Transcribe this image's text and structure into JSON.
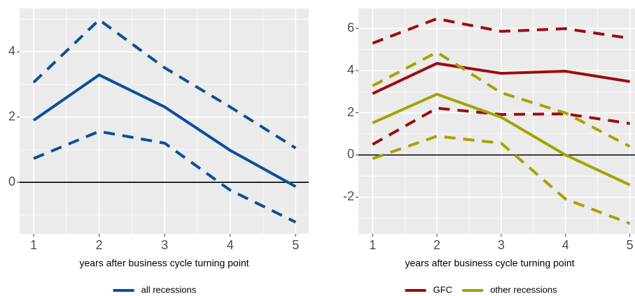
{
  "chart_data": [
    {
      "type": "line",
      "x": [
        1,
        2,
        3,
        4,
        5
      ],
      "xlim": [
        0.786,
        5.2
      ],
      "xticks": [
        1,
        2,
        3,
        4,
        5
      ],
      "ylim": [
        -1.58,
        5.33
      ],
      "yticks": [
        0,
        2,
        4
      ],
      "hline": 0,
      "grid": true,
      "x_label": "years after business cycle turning point",
      "series": [
        {
          "name": "all recessions",
          "color": "#0b4f9c",
          "values": [
            1.9,
            3.29,
            2.31,
            0.98,
            -0.13
          ],
          "upper": [
            3.06,
            4.98,
            3.51,
            2.31,
            1.05
          ],
          "lower": [
            0.73,
            1.56,
            1.2,
            -0.24,
            -1.22
          ]
        }
      ]
    },
    {
      "type": "line",
      "x": [
        1,
        2,
        3,
        4,
        5
      ],
      "xlim": [
        0.78,
        5.08
      ],
      "xticks": [
        1,
        2,
        3,
        4,
        5
      ],
      "ylim": [
        -3.74,
        6.95
      ],
      "yticks": [
        -2,
        0,
        2,
        4,
        6
      ],
      "hline": 0,
      "grid": true,
      "x_label": "years after business cycle turning point",
      "series": [
        {
          "name": "GFC",
          "color": "#9b0d0d",
          "values": [
            2.91,
            4.34,
            3.87,
            3.97,
            3.48
          ],
          "upper": [
            5.3,
            6.46,
            5.86,
            5.99,
            5.53
          ],
          "lower": [
            0.5,
            2.22,
            1.92,
            1.95,
            1.49
          ]
        },
        {
          "name": "other recessions",
          "color": "#a3a300",
          "values": [
            1.52,
            2.88,
            1.79,
            0.0,
            -1.42
          ],
          "upper": [
            3.28,
            4.87,
            2.95,
            1.99,
            0.4
          ],
          "lower": [
            -0.17,
            0.89,
            0.56,
            -2.09,
            -3.25
          ]
        }
      ]
    }
  ]
}
